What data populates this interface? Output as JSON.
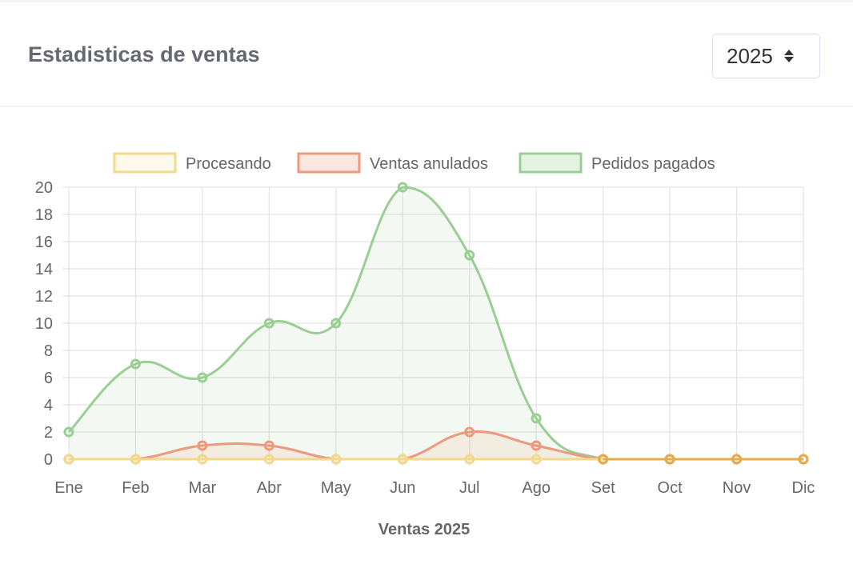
{
  "header": {
    "title": "Estadisticas de ventas",
    "year_select": {
      "value": "2025"
    }
  },
  "chart_data": {
    "type": "line",
    "title": "",
    "xlabel": "Ventas 2025",
    "ylabel": "",
    "ylim": [
      0,
      20
    ],
    "yticks": [
      "0",
      "2",
      "4",
      "6",
      "8",
      "10",
      "12",
      "14",
      "16",
      "18",
      "20"
    ],
    "categories": [
      "Ene",
      "Feb",
      "Mar",
      "Abr",
      "May",
      "Jun",
      "Jul",
      "Ago",
      "Set",
      "Oct",
      "Nov",
      "Dic"
    ],
    "legend_position": "top",
    "grid": true,
    "series": [
      {
        "name": "Procesando",
        "color": "#f4d98a",
        "fill": "rgba(250,232,170,0.15)",
        "values": [
          0,
          0,
          0,
          0,
          0,
          0,
          0,
          0,
          0,
          0,
          0,
          0
        ]
      },
      {
        "name": "Ventas anulados",
        "color": "#ec9a7f",
        "fill": "rgba(240,160,130,0.15)",
        "values": [
          0,
          0,
          1,
          1,
          0,
          0,
          2,
          1,
          0,
          0,
          0,
          0
        ]
      },
      {
        "name": "Pedidos pagados",
        "color": "#9acf93",
        "fill": "rgba(154,207,147,0.12)",
        "values": [
          2,
          7,
          6,
          10,
          10,
          20,
          15,
          3,
          0,
          0,
          0,
          0
        ]
      }
    ]
  }
}
